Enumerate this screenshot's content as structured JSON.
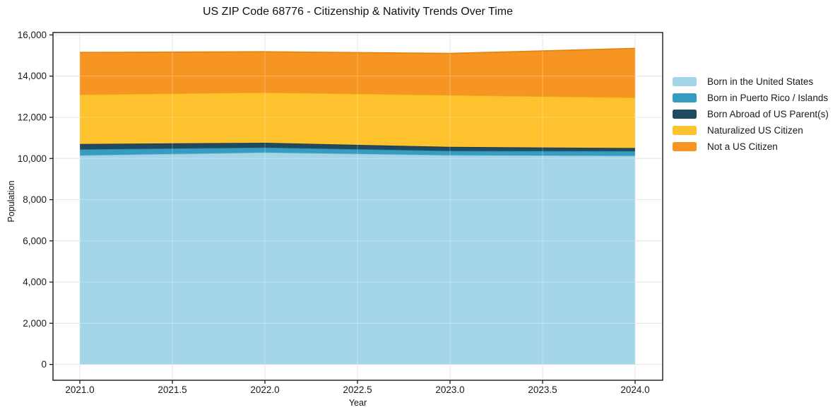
{
  "chart_data": {
    "type": "area",
    "stacked": true,
    "title": "US ZIP Code 68776 - Citizenship & Nativity Trends Over Time",
    "xlabel": "Year",
    "ylabel": "Population",
    "x": [
      2021,
      2022,
      2023,
      2024
    ],
    "series": [
      {
        "name": "Born in the United States",
        "color": "#a5d5e9",
        "edge": "#8fc4dc",
        "values": [
          10150,
          10290,
          10160,
          10130
        ]
      },
      {
        "name": "Born in Puerto Rico / Islands",
        "color": "#369dc0",
        "edge": "#2c89ab",
        "values": [
          290,
          240,
          210,
          225
        ]
      },
      {
        "name": "Born Abroad of US Parent(s)",
        "color": "#1f4a5f",
        "edge": "#17394b",
        "values": [
          265,
          235,
          195,
          155
        ]
      },
      {
        "name": "Naturalized US Citizen",
        "color": "#fdc22d",
        "edge": "#eaad15",
        "values": [
          2400,
          2445,
          2515,
          2450
        ]
      },
      {
        "name": "Not a US Citizen",
        "color": "#f79522",
        "edge": "#e2830e",
        "values": [
          2045,
          1975,
          2020,
          2390
        ]
      }
    ],
    "totals": [
      15150,
      15185,
      15100,
      15350
    ],
    "xlim": [
      2020.855,
      2024.149
    ],
    "ylim": [
      -767.5,
      16117.5
    ],
    "xticks": [
      2021.0,
      2021.5,
      2022.0,
      2022.5,
      2023.0,
      2023.5,
      2024.0
    ],
    "xtick_labels": [
      "2021.0",
      "2021.5",
      "2022.0",
      "2022.5",
      "2023.0",
      "2023.5",
      "2024.0"
    ],
    "yticks": [
      0,
      2000,
      4000,
      6000,
      8000,
      10000,
      12000,
      14000,
      16000
    ],
    "ytick_labels": [
      "0",
      "2,000",
      "4,000",
      "6,000",
      "8,000",
      "10,000",
      "12,000",
      "14,000",
      "16,000"
    ],
    "grid": true,
    "legend_position": "right-outside",
    "colors": {
      "background": "#ffffff",
      "spine": "#1a1a1a",
      "tick_label": "#1a1a1a",
      "gridline": "#dcdcdc"
    }
  }
}
